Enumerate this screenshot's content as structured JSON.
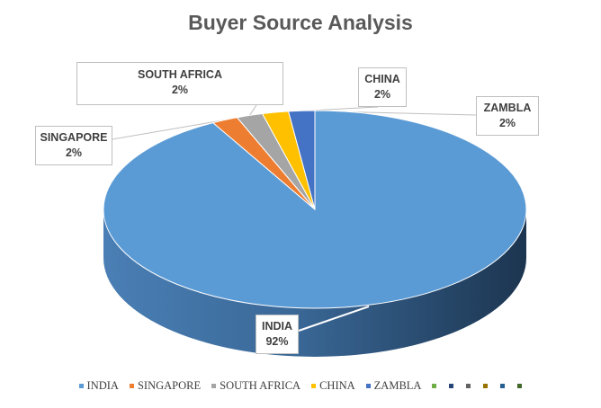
{
  "chart_data": {
    "type": "pie",
    "title": "Buyer Source Analysis",
    "slices": [
      {
        "label": "INDIA",
        "value": 92,
        "display": "92%",
        "color": "#5B9BD5"
      },
      {
        "label": "SINGAPORE",
        "value": 2,
        "display": "2%",
        "color": "#ED7D31"
      },
      {
        "label": "SOUTH AFRICA",
        "value": 2,
        "display": "2%",
        "color": "#A5A5A5"
      },
      {
        "label": "CHINA",
        "value": 2,
        "display": "2%",
        "color": "#FFC000"
      },
      {
        "label": "ZAMBLA",
        "value": 2,
        "display": "2%",
        "color": "#4472C4"
      }
    ],
    "legend": {
      "position": "bottom",
      "extra_swatches": [
        "#70AD47",
        "#264478",
        "#636363",
        "#997300",
        "#255E91",
        "#43682B"
      ]
    },
    "style": "3d"
  }
}
